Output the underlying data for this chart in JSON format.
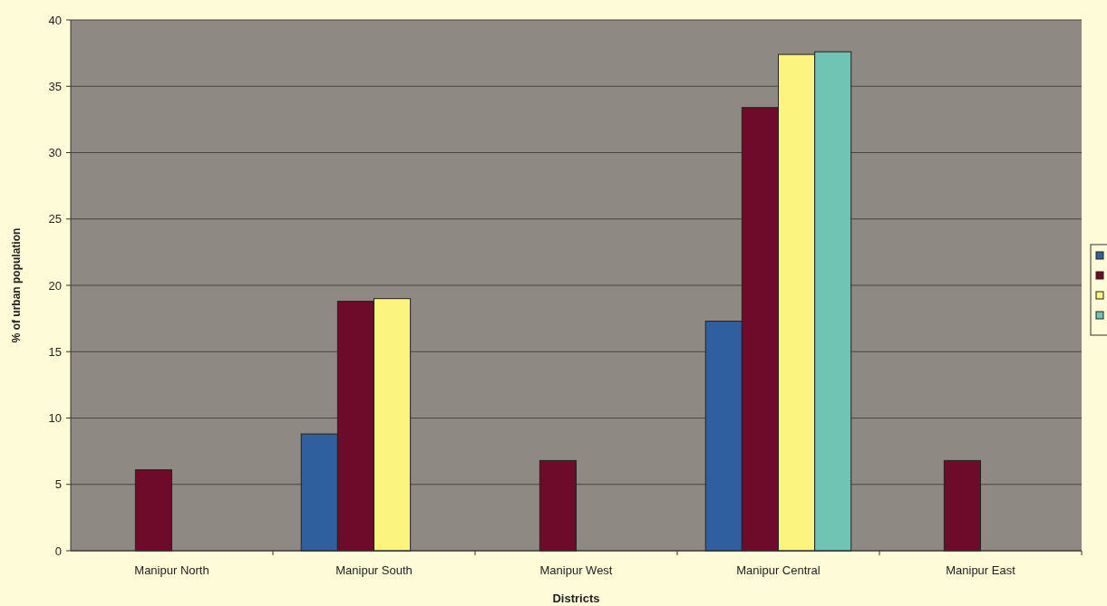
{
  "chart_data": {
    "type": "bar",
    "xlabel": "Districts",
    "ylabel": "% of urban population",
    "categories": [
      "Manipur North",
      "Manipur South",
      "Manipur West",
      "Manipur Central",
      "Manipur East"
    ],
    "series": [
      {
        "color": "#2f5f9e",
        "values": [
          null,
          8.8,
          null,
          17.3,
          null
        ]
      },
      {
        "color": "#6e0a2a",
        "values": [
          6.1,
          18.8,
          6.8,
          33.4,
          6.8
        ]
      },
      {
        "color": "#fbf47e",
        "values": [
          null,
          19.0,
          null,
          37.4,
          null
        ]
      },
      {
        "color": "#6fc4b4",
        "values": [
          null,
          null,
          null,
          37.6,
          null
        ]
      }
    ],
    "ylim": [
      0,
      40
    ],
    "yticks": [
      0,
      5,
      10,
      15,
      20,
      25,
      30,
      35,
      40
    ],
    "grid": "y"
  }
}
